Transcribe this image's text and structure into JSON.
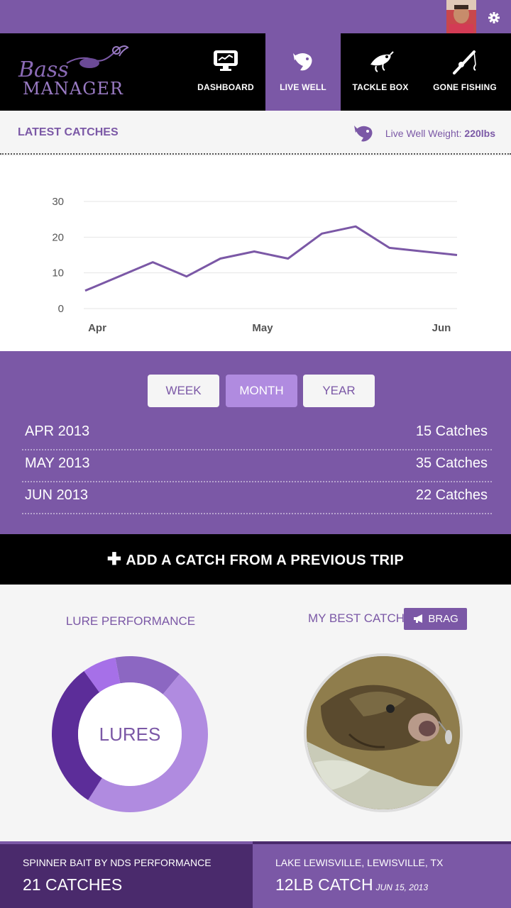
{
  "nav": {
    "tabs": [
      {
        "label": "DASHBOARD",
        "icon": "monitor-icon",
        "active": false
      },
      {
        "label": "LIVE WELL",
        "icon": "fish-icon",
        "active": true
      },
      {
        "label": "TACKLE BOX",
        "icon": "lure-icon",
        "active": false
      },
      {
        "label": "GONE FISHING",
        "icon": "fishing-rod-icon",
        "active": false
      }
    ],
    "logo_line1": "Bass",
    "logo_line2": "MANAGER"
  },
  "latest": {
    "title": "LATEST CATCHES",
    "live_well_label": "Live Well Weight:",
    "live_well_value": "220lbs"
  },
  "chart_data": {
    "type": "line",
    "x_ticks": [
      "Apr",
      "May",
      "Jun"
    ],
    "y_ticks": [
      0,
      10,
      20,
      30
    ],
    "ylim": [
      0,
      30
    ],
    "grid": true,
    "series": [
      {
        "values": [
          5,
          9,
          13,
          9,
          14,
          16,
          14,
          21,
          23,
          17,
          16,
          15
        ]
      }
    ]
  },
  "period": {
    "buttons": [
      "WEEK",
      "MONTH",
      "YEAR"
    ],
    "active": "MONTH",
    "rows": [
      {
        "month": "APR 2013",
        "count": "15 Catches"
      },
      {
        "month": "MAY 2013",
        "count": "35 Catches"
      },
      {
        "month": "JUN 2013",
        "count": "22 Catches"
      }
    ]
  },
  "add_catch_label": "ADD A CATCH FROM A PREVIOUS TRIP",
  "lure": {
    "title": "LURE PERFORMANCE",
    "center_label": "LURES",
    "slices": [
      {
        "value": 14,
        "color": "#8c67c2"
      },
      {
        "value": 48,
        "color": "#b08be0"
      },
      {
        "value": 31,
        "color": "#5c2d99"
      },
      {
        "value": 7,
        "color": "#a670e8"
      }
    ]
  },
  "best": {
    "title": "MY BEST CATCH",
    "brag_label": "BRAG"
  },
  "footer": {
    "left_small": "SPINNER BAIT BY NDS PERFORMANCE",
    "left_big": "21 CATCHES",
    "right_small": "LAKE LEWISVILLE, LEWISVILLE, TX",
    "right_big": "12LB CATCH",
    "right_date": "JUN 15, 2013"
  },
  "colors": {
    "purple": "#7b58a6",
    "dark_purple": "#4a2a6c",
    "light_purple": "#b08be0"
  }
}
